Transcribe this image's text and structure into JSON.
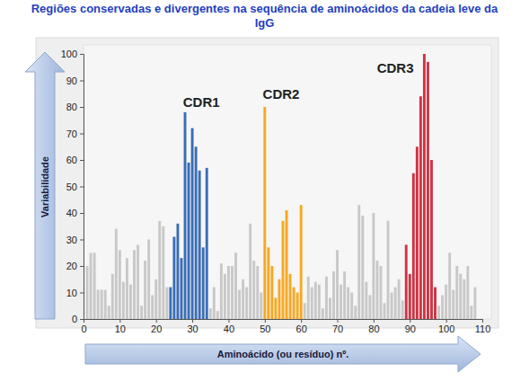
{
  "chart_data": {
    "type": "bar",
    "title": "Regiões conservadas e divergentes na sequência de aminoácidos da cadeia leve da IgG",
    "xlabel": "Aminoácido (ou resíduo) nº.",
    "ylabel": "Variabilidade",
    "x": [
      1,
      2,
      3,
      4,
      5,
      6,
      7,
      8,
      9,
      10,
      11,
      12,
      13,
      14,
      15,
      16,
      17,
      18,
      19,
      20,
      21,
      22,
      23,
      24,
      25,
      26,
      27,
      28,
      29,
      30,
      31,
      32,
      33,
      34,
      35,
      36,
      37,
      38,
      39,
      40,
      41,
      42,
      43,
      44,
      45,
      46,
      47,
      48,
      49,
      50,
      51,
      52,
      53,
      54,
      55,
      56,
      57,
      58,
      59,
      60,
      61,
      62,
      63,
      64,
      65,
      66,
      67,
      68,
      69,
      70,
      71,
      72,
      73,
      74,
      75,
      76,
      77,
      78,
      79,
      80,
      81,
      82,
      83,
      84,
      85,
      86,
      87,
      88,
      89,
      90,
      91,
      92,
      93,
      94,
      95,
      96,
      97,
      98,
      99,
      100,
      101,
      102,
      103,
      104,
      105,
      106,
      107,
      108
    ],
    "values": [
      20,
      25,
      25,
      11,
      11,
      11,
      5,
      17,
      34,
      26,
      14,
      23,
      13,
      26,
      28,
      5,
      22,
      30,
      9,
      15,
      37,
      35,
      12,
      12,
      31,
      36,
      23,
      78,
      59,
      72,
      65,
      56,
      27,
      57,
      4,
      12,
      3,
      21,
      17,
      20,
      20,
      25,
      11,
      15,
      12,
      36,
      22,
      20,
      10,
      80,
      27,
      20,
      8,
      15,
      37,
      41,
      17,
      12,
      10,
      43,
      6,
      16,
      12,
      14,
      13,
      4,
      16,
      8,
      18,
      26,
      13,
      18,
      12,
      10,
      5,
      43,
      39,
      14,
      9,
      40,
      22,
      20,
      6,
      37,
      10,
      12,
      15,
      7,
      28,
      17,
      55,
      65,
      84,
      100,
      97,
      60,
      12,
      5,
      9,
      13,
      25,
      11,
      20,
      17,
      15,
      20,
      5,
      12
    ],
    "colors": [
      "#c8c8c8",
      "#c8c8c8",
      "#c8c8c8",
      "#c8c8c8",
      "#c8c8c8",
      "#c8c8c8",
      "#c8c8c8",
      "#c8c8c8",
      "#c8c8c8",
      "#c8c8c8",
      "#c8c8c8",
      "#c8c8c8",
      "#c8c8c8",
      "#c8c8c8",
      "#c8c8c8",
      "#c8c8c8",
      "#c8c8c8",
      "#c8c8c8",
      "#c8c8c8",
      "#c8c8c8",
      "#c8c8c8",
      "#c8c8c8",
      "#c8c8c8",
      "#3a6db5",
      "#3a6db5",
      "#3a6db5",
      "#3a6db5",
      "#3a6db5",
      "#3a6db5",
      "#3a6db5",
      "#3a6db5",
      "#3a6db5",
      "#3a6db5",
      "#3a6db5",
      "#c8c8c8",
      "#c8c8c8",
      "#c8c8c8",
      "#c8c8c8",
      "#c8c8c8",
      "#c8c8c8",
      "#c8c8c8",
      "#c8c8c8",
      "#c8c8c8",
      "#c8c8c8",
      "#c8c8c8",
      "#c8c8c8",
      "#c8c8c8",
      "#c8c8c8",
      "#c8c8c8",
      "#f7a823",
      "#f7a823",
      "#f7a823",
      "#f7a823",
      "#f7a823",
      "#f7a823",
      "#f7a823",
      "#f7a823",
      "#f7a823",
      "#f7a823",
      "#f7a823",
      "#c8c8c8",
      "#c8c8c8",
      "#c8c8c8",
      "#c8c8c8",
      "#c8c8c8",
      "#c8c8c8",
      "#c8c8c8",
      "#c8c8c8",
      "#c8c8c8",
      "#c8c8c8",
      "#c8c8c8",
      "#c8c8c8",
      "#c8c8c8",
      "#c8c8c8",
      "#c8c8c8",
      "#c8c8c8",
      "#c8c8c8",
      "#c8c8c8",
      "#c8c8c8",
      "#c8c8c8",
      "#c8c8c8",
      "#c8c8c8",
      "#c8c8c8",
      "#c8c8c8",
      "#c8c8c8",
      "#c8c8c8",
      "#c8c8c8",
      "#c8c8c8",
      "#d03344",
      "#d03344",
      "#d03344",
      "#d03344",
      "#d03344",
      "#d03344",
      "#d03344",
      "#d03344",
      "#d03344",
      "#c8c8c8",
      "#c8c8c8",
      "#c8c8c8",
      "#c8c8c8",
      "#c8c8c8",
      "#c8c8c8",
      "#c8c8c8",
      "#c8c8c8",
      "#c8c8c8",
      "#c8c8c8",
      "#c8c8c8"
    ],
    "xlim": [
      0,
      110
    ],
    "xticks": [
      0,
      10,
      20,
      30,
      40,
      50,
      60,
      70,
      80,
      90,
      100,
      110
    ],
    "ylim": [
      0,
      100
    ],
    "yticks": [
      0,
      10,
      20,
      30,
      40,
      50,
      60,
      70,
      80,
      90,
      100
    ],
    "grid": false,
    "annotations": [
      {
        "text": "CDR1",
        "x": 32.5,
        "y": 80
      },
      {
        "text": "CDR2",
        "x": 54.5,
        "y": 83
      },
      {
        "text": "CDR3",
        "x": 86,
        "y": 93
      }
    ]
  }
}
